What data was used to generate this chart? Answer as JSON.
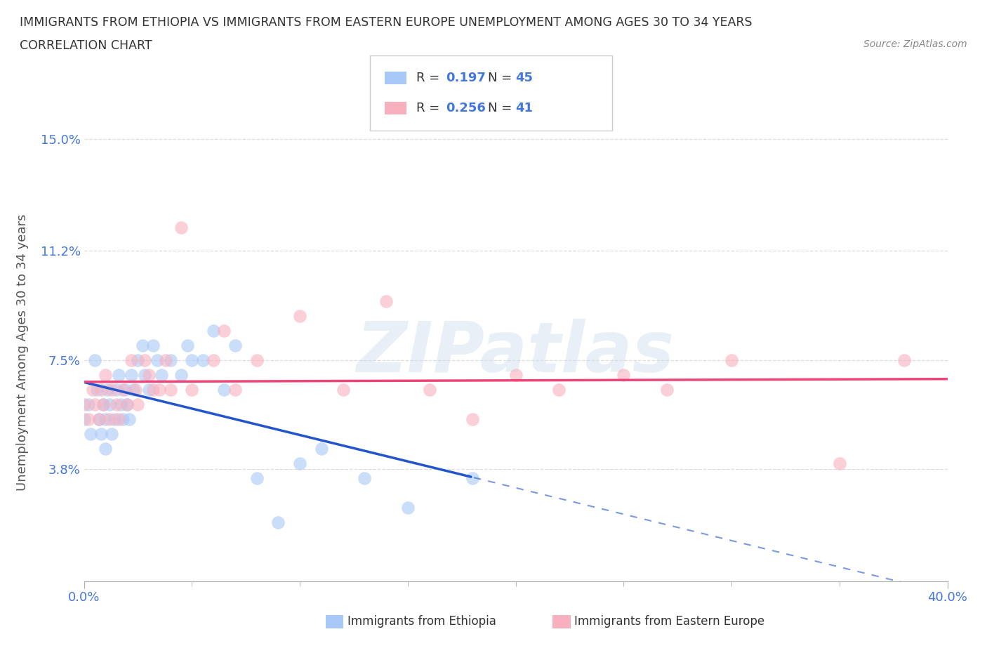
{
  "title_line1": "IMMIGRANTS FROM ETHIOPIA VS IMMIGRANTS FROM EASTERN EUROPE UNEMPLOYMENT AMONG AGES 30 TO 34 YEARS",
  "title_line2": "CORRELATION CHART",
  "source_text": "Source: ZipAtlas.com",
  "ylabel": "Unemployment Among Ages 30 to 34 years",
  "xmin": 0.0,
  "xmax": 0.4,
  "ymin": 0.0,
  "ymax": 0.155,
  "ytick_vals": [
    0.0,
    0.038,
    0.075,
    0.112,
    0.15
  ],
  "ytick_labels": [
    "",
    "3.8%",
    "7.5%",
    "11.2%",
    "15.0%"
  ],
  "xtick_vals": [
    0.0,
    0.4
  ],
  "xtick_labels": [
    "0.0%",
    "40.0%"
  ],
  "watermark": "ZIPatlas",
  "ethiopia_R": "0.197",
  "ethiopia_N": "45",
  "eastern_europe_R": "0.256",
  "eastern_europe_N": "41",
  "ethiopia_color": "#a8c8f8",
  "eastern_europe_color": "#f8b0be",
  "ethiopia_line_color": "#2255cc",
  "eastern_europe_line_color": "#ee4477",
  "blue_text_color": "#4477dd",
  "title_color": "#333333",
  "axis_label_color": "#555555",
  "grid_color": "#dddddd",
  "legend_label_ethiopia": "Immigrants from Ethiopia",
  "legend_label_ee": "Immigrants from Eastern Europe",
  "ethiopia_x": [
    0.0,
    0.002,
    0.003,
    0.005,
    0.006,
    0.007,
    0.008,
    0.009,
    0.01,
    0.01,
    0.011,
    0.012,
    0.013,
    0.014,
    0.015,
    0.016,
    0.017,
    0.018,
    0.019,
    0.02,
    0.021,
    0.022,
    0.023,
    0.025,
    0.027,
    0.028,
    0.03,
    0.032,
    0.034,
    0.036,
    0.04,
    0.045,
    0.048,
    0.05,
    0.055,
    0.06,
    0.065,
    0.07,
    0.08,
    0.09,
    0.1,
    0.11,
    0.13,
    0.15,
    0.18
  ],
  "ethiopia_y": [
    0.055,
    0.06,
    0.05,
    0.075,
    0.065,
    0.055,
    0.05,
    0.06,
    0.055,
    0.045,
    0.065,
    0.06,
    0.05,
    0.055,
    0.065,
    0.07,
    0.06,
    0.055,
    0.065,
    0.06,
    0.055,
    0.07,
    0.065,
    0.075,
    0.08,
    0.07,
    0.065,
    0.08,
    0.075,
    0.07,
    0.075,
    0.07,
    0.08,
    0.075,
    0.075,
    0.085,
    0.065,
    0.08,
    0.035,
    0.02,
    0.04,
    0.045,
    0.035,
    0.025,
    0.035
  ],
  "eastern_europe_x": [
    0.0,
    0.002,
    0.004,
    0.005,
    0.007,
    0.008,
    0.009,
    0.01,
    0.012,
    0.013,
    0.015,
    0.016,
    0.018,
    0.02,
    0.022,
    0.024,
    0.025,
    0.028,
    0.03,
    0.032,
    0.035,
    0.038,
    0.04,
    0.045,
    0.05,
    0.06,
    0.065,
    0.07,
    0.08,
    0.1,
    0.12,
    0.14,
    0.16,
    0.18,
    0.2,
    0.22,
    0.25,
    0.27,
    0.3,
    0.35,
    0.38
  ],
  "eastern_europe_y": [
    0.06,
    0.055,
    0.065,
    0.06,
    0.055,
    0.065,
    0.06,
    0.07,
    0.055,
    0.065,
    0.06,
    0.055,
    0.065,
    0.06,
    0.075,
    0.065,
    0.06,
    0.075,
    0.07,
    0.065,
    0.065,
    0.075,
    0.065,
    0.12,
    0.065,
    0.075,
    0.085,
    0.065,
    0.075,
    0.09,
    0.065,
    0.095,
    0.065,
    0.055,
    0.07,
    0.065,
    0.07,
    0.065,
    0.075,
    0.04,
    0.075
  ]
}
